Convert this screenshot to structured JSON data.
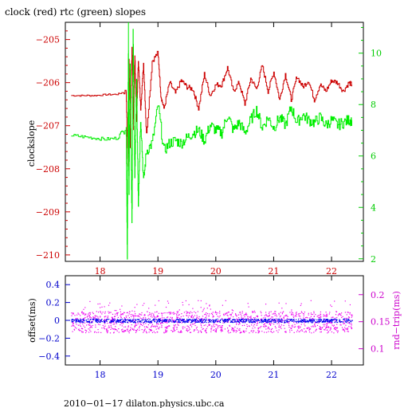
{
  "chart_data": [
    {
      "type": "line",
      "title": "clock (red) rtc (green) slopes",
      "ylabel": "clockslope",
      "y2label": "",
      "xlabel": "",
      "xlim": [
        17.4,
        22.55
      ],
      "ylim": [
        -210.15,
        -204.6
      ],
      "y2lim": [
        1.9,
        11.2
      ],
      "x_ticks": [
        18,
        19,
        20,
        21,
        22
      ],
      "y_ticks": [
        -205,
        -206,
        -207,
        -208,
        -209,
        -210
      ],
      "y2_ticks": [
        2,
        4,
        6,
        8,
        10
      ],
      "colors": {
        "clock": "#cc0000",
        "rtc": "#00ee00",
        "axis_left": "#cc0000",
        "axis_right": "#00cc00",
        "ticks_x": "#cc0000"
      },
      "series": [
        {
          "axis": "left",
          "color": "#cc0000",
          "x": [
            17.5,
            17.7,
            17.9,
            18.1,
            18.3,
            18.45,
            18.48,
            18.5,
            18.52,
            18.55,
            18.58,
            18.6,
            18.63,
            18.66,
            18.7,
            18.75,
            18.8,
            18.9,
            19.0,
            19.05,
            19.1,
            19.2,
            19.3,
            19.4,
            19.5,
            19.6,
            19.7,
            19.8,
            19.9,
            20.0,
            20.1,
            20.2,
            20.3,
            20.4,
            20.5,
            20.6,
            20.7,
            20.8,
            20.9,
            21.0,
            21.1,
            21.2,
            21.3,
            21.4,
            21.5,
            21.6,
            21.7,
            21.8,
            21.9,
            22.0,
            22.1,
            22.2,
            22.3,
            22.35
          ],
          "y": [
            -206.3,
            -206.3,
            -206.3,
            -206.28,
            -206.27,
            -206.2,
            -207.95,
            -205.4,
            -207.5,
            -205.15,
            -207.1,
            -205.35,
            -206.9,
            -205.45,
            -206.6,
            -205.55,
            -207.2,
            -205.5,
            -205.3,
            -206.3,
            -206.6,
            -206.0,
            -206.25,
            -205.95,
            -206.1,
            -206.15,
            -206.6,
            -205.8,
            -206.3,
            -206.05,
            -206.05,
            -205.65,
            -206.2,
            -206.0,
            -206.5,
            -205.9,
            -206.15,
            -205.6,
            -206.2,
            -205.75,
            -206.4,
            -205.8,
            -206.4,
            -205.85,
            -206.1,
            -205.95,
            -206.4,
            -206.05,
            -206.2,
            -205.95,
            -206.0,
            -206.2,
            -206.0,
            -206.05
          ]
        },
        {
          "axis": "right",
          "color": "#00ee00",
          "x": [
            17.5,
            17.7,
            17.9,
            18.1,
            18.3,
            18.45,
            18.47,
            18.49,
            18.5,
            18.52,
            18.55,
            18.57,
            18.6,
            18.63,
            18.66,
            18.7,
            18.75,
            18.8,
            18.9,
            19.0,
            19.1,
            19.2,
            19.3,
            19.4,
            19.5,
            19.6,
            19.7,
            19.8,
            19.9,
            20.0,
            20.1,
            20.2,
            20.3,
            20.4,
            20.5,
            20.6,
            20.7,
            20.8,
            20.9,
            21.0,
            21.1,
            21.2,
            21.3,
            21.4,
            21.5,
            21.6,
            21.7,
            21.8,
            21.9,
            22.0,
            22.1,
            22.2,
            22.3,
            22.35
          ],
          "y": [
            6.8,
            6.75,
            6.7,
            6.65,
            6.7,
            7.2,
            2.1,
            11.0,
            4.5,
            9.5,
            3.2,
            11.0,
            5.0,
            9.0,
            4.2,
            7.5,
            5.0,
            6.2,
            6.5,
            8.0,
            6.2,
            6.5,
            6.6,
            6.5,
            6.7,
            6.9,
            7.0,
            6.6,
            7.2,
            7.0,
            6.9,
            7.6,
            7.0,
            7.3,
            6.9,
            7.4,
            7.8,
            7.1,
            7.5,
            7.1,
            7.5,
            7.2,
            7.9,
            7.3,
            7.6,
            7.4,
            7.3,
            7.5,
            7.2,
            7.4,
            7.2,
            7.3,
            7.4,
            7.4
          ]
        }
      ]
    },
    {
      "type": "scatter",
      "title": "",
      "ylabel": "offset(ms)",
      "y2label": "rnd−trip(ms)",
      "xlabel": "",
      "xlim": [
        17.4,
        22.55
      ],
      "ylim": [
        -0.5,
        0.5
      ],
      "y2lim": [
        0.07,
        0.235
      ],
      "x_ticks": [
        18,
        19,
        20,
        21,
        22
      ],
      "y_ticks": [
        0.4,
        0.2,
        0,
        -0.2,
        -0.4
      ],
      "y_tick_labels": [
        "0.4",
        "0.2",
        "0",
        "−0.2",
        "−0.4"
      ],
      "y2_ticks": [
        0.1,
        0.15,
        0.2
      ],
      "y2_tick_labels": [
        "0.1",
        "0.15",
        "0.2"
      ],
      "colors": {
        "offset": "#0000ee",
        "roundtrip": "#ee00ee",
        "axis_left": "#0000cc",
        "axis_right": "#cc00cc",
        "ticks_x": "#0000cc"
      },
      "series": [
        {
          "axis": "left",
          "color": "#0000ee",
          "x_range": [
            17.5,
            22.35
          ],
          "y_center": 0.0,
          "y_spread": 0.02
        },
        {
          "axis": "right",
          "color": "#ee00ee",
          "x_range": [
            17.5,
            22.35
          ],
          "y_center": 0.145,
          "y_spread": 0.02,
          "y_min": 0.13,
          "y_max": 0.17
        }
      ]
    }
  ],
  "footer": "2010−01−17  dilaton.physics.ubc.ca"
}
